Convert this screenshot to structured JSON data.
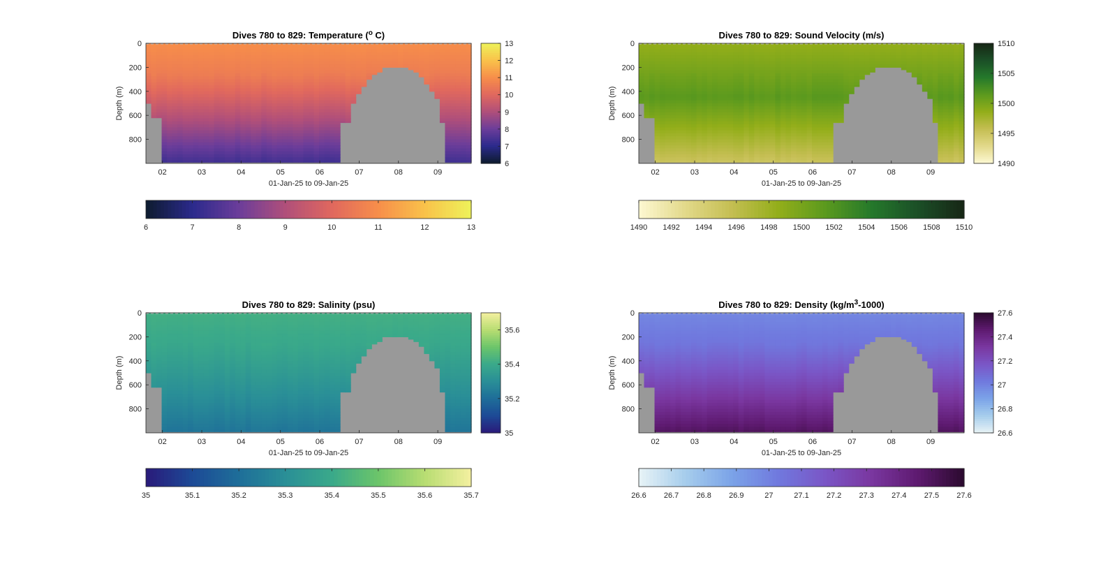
{
  "chart_data": [
    {
      "type": "heatmap",
      "title": "Dives 780 to 829: Temperature (",
      "title_sup": "o",
      "title_end": " C)",
      "ylabel": "Depth (m)",
      "xlabel": "01-Jan-25 to 09-Jan-25",
      "x_ticks": [
        "02",
        "03",
        "04",
        "05",
        "06",
        "07",
        "08",
        "09"
      ],
      "y_ticks": [
        "0",
        "200",
        "400",
        "600",
        "800"
      ],
      "ylim": [
        0,
        1000
      ],
      "y_reversed": true,
      "colormap": [
        "#0d1b2e",
        "#2b2a8c",
        "#6b3d9a",
        "#b04f7a",
        "#e0685e",
        "#f78e4a",
        "#f9c24a",
        "#eef25a"
      ],
      "clim": [
        6,
        13
      ],
      "vertical_colorbar_ticks": [
        "6",
        "7",
        "8",
        "9",
        "10",
        "11",
        "12",
        "13"
      ],
      "horizontal_colorbar_ticks": [
        "6",
        "7",
        "8",
        "9",
        "10",
        "11",
        "12",
        "13"
      ],
      "surface_value": 11.0,
      "deep_value": 7.3,
      "no_data_color": "#999999"
    },
    {
      "type": "heatmap",
      "title": "Dives 780 to 829: Sound Velocity (m/s)",
      "title_sup": "",
      "title_end": "",
      "ylabel": "Depth (m)",
      "xlabel": "01-Jan-25 to 09-Jan-25",
      "x_ticks": [
        "02",
        "03",
        "04",
        "05",
        "06",
        "07",
        "08",
        "09"
      ],
      "y_ticks": [
        "0",
        "200",
        "400",
        "600",
        "800"
      ],
      "ylim": [
        0,
        1000
      ],
      "y_reversed": true,
      "colormap": [
        "#fdf8d2",
        "#e2d98a",
        "#c4be52",
        "#93ae1a",
        "#5c9a1e",
        "#25792b",
        "#1b4f27",
        "#172615"
      ],
      "clim": [
        1490,
        1510
      ],
      "vertical_colorbar_ticks": [
        "1490",
        "1495",
        "1500",
        "1505",
        "1510"
      ],
      "horizontal_colorbar_ticks": [
        "1490",
        "1492",
        "1494",
        "1496",
        "1498",
        "1500",
        "1502",
        "1504",
        "1506",
        "1508",
        "1510"
      ],
      "surface_value": 1498.5,
      "mid_value": 1501.5,
      "deep_value": 1495.0,
      "no_data_color": "#999999"
    },
    {
      "type": "heatmap",
      "title": "Dives 780 to 829: Salinity (psu)",
      "title_sup": "",
      "title_end": "",
      "ylabel": "Depth (m)",
      "xlabel": "01-Jan-25 to 09-Jan-25",
      "x_ticks": [
        "02",
        "03",
        "04",
        "05",
        "06",
        "07",
        "08",
        "09"
      ],
      "y_ticks": [
        "0",
        "200",
        "400",
        "600",
        "800"
      ],
      "ylim": [
        0,
        1000
      ],
      "y_reversed": true,
      "colormap": [
        "#2a1a7a",
        "#1d4a96",
        "#1e6e99",
        "#2a8f97",
        "#3aa98a",
        "#6cc56a",
        "#b8dd72",
        "#f4f0a0"
      ],
      "clim": [
        35.0,
        35.7
      ],
      "vertical_colorbar_ticks": [
        "35",
        "35.2",
        "35.4",
        "35.6"
      ],
      "horizontal_colorbar_ticks": [
        "35",
        "35.1",
        "35.2",
        "35.3",
        "35.4",
        "35.5",
        "35.6",
        "35.7"
      ],
      "surface_value": 35.42,
      "deep_value": 35.22,
      "no_data_color": "#999999"
    },
    {
      "type": "heatmap",
      "title": "Dives 780 to 829: Density (kg/m",
      "title_sup": "3",
      "title_end": "-1000)",
      "ylabel": "Depth (m)",
      "xlabel": "01-Jan-25 to 09-Jan-25",
      "x_ticks": [
        "02",
        "03",
        "04",
        "05",
        "06",
        "07",
        "08",
        "09"
      ],
      "y_ticks": [
        "0",
        "200",
        "400",
        "600",
        "800"
      ],
      "ylim": [
        0,
        1000
      ],
      "y_reversed": true,
      "colormap": [
        "#e8f3f6",
        "#a6cdec",
        "#7ba3e8",
        "#7079de",
        "#7a56c6",
        "#7a37a0",
        "#5e1a70",
        "#2b0a2e"
      ],
      "clim": [
        26.6,
        27.6
      ],
      "vertical_colorbar_ticks": [
        "26.6",
        "26.8",
        "27",
        "27.2",
        "27.4",
        "27.6"
      ],
      "horizontal_colorbar_ticks": [
        "26.6",
        "26.7",
        "26.8",
        "26.9",
        "27",
        "27.1",
        "27.2",
        "27.3",
        "27.4",
        "27.5",
        "27.6"
      ],
      "surface_value": 26.98,
      "deep_value": 27.5,
      "no_data_color": "#999999"
    }
  ]
}
